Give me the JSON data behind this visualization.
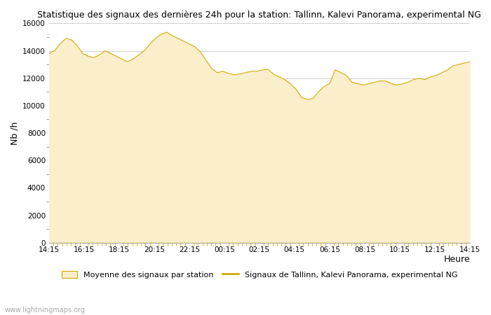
{
  "title": "Statistique des signaux des dernières 24h pour la station: Tallinn, Kalevi Panorama, experimental NG",
  "xlabel": "Heure",
  "ylabel": "Nb /h",
  "ylim": [
    0,
    16000
  ],
  "yticks": [
    0,
    2000,
    4000,
    6000,
    8000,
    10000,
    12000,
    14000,
    16000
  ],
  "xtick_labels": [
    "14:15",
    "16:15",
    "18:15",
    "20:15",
    "22:15",
    "00:15",
    "02:15",
    "04:15",
    "06:15",
    "08:15",
    "10:15",
    "12:15",
    "14:15"
  ],
  "fill_color": "#faeecb",
  "line_color": "#d4aa00",
  "background_color": "#ffffff",
  "plot_bg_color": "#ffffff",
  "grid_color": "#d0d0d0",
  "watermark": "www.lightningmaps.org",
  "legend_fill_label": "Moyenne des signaux par station",
  "legend_line_label": "Signaux de Tallinn, Kalevi Panorama, experimental NG",
  "y_values": [
    13800,
    14000,
    14500,
    14900,
    14800,
    14400,
    13800,
    13600,
    13500,
    13700,
    14000,
    13800,
    13600,
    13400,
    13200,
    13400,
    13700,
    14000,
    14500,
    14900,
    15200,
    15350,
    15100,
    14900,
    14700,
    14500,
    14300,
    13900,
    13300,
    12700,
    12400,
    12500,
    12350,
    12250,
    12300,
    12400,
    12500,
    12500,
    12600,
    12650,
    12300,
    12100,
    11900,
    11600,
    11200,
    10600,
    10450,
    10500,
    11000,
    11400,
    11600,
    12600,
    12400,
    12200,
    11700,
    11600,
    11500,
    11600,
    11700,
    11800,
    11800,
    11600,
    11500,
    11600,
    11700,
    11900,
    12000,
    11900,
    12100,
    12200,
    12400,
    12600,
    12900,
    13000,
    13100,
    13200
  ]
}
